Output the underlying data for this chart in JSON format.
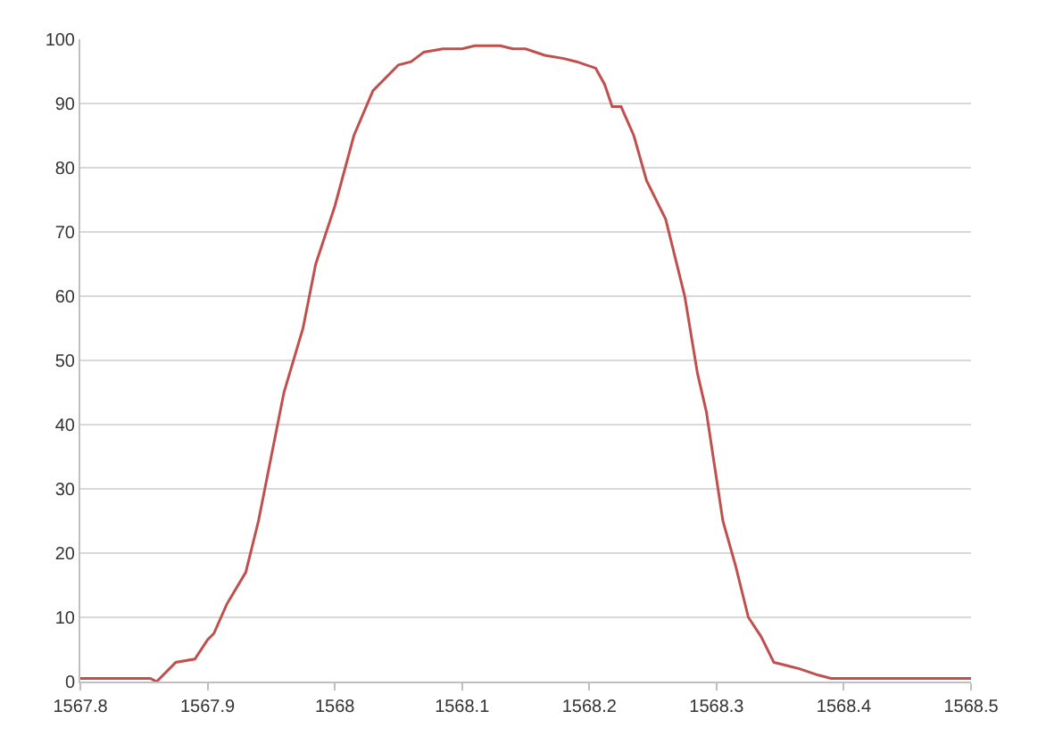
{
  "chart_data": {
    "type": "line",
    "x": [
      1567.8,
      1567.83,
      1567.855,
      1567.86,
      1567.875,
      1567.89,
      1567.9,
      1567.905,
      1567.915,
      1567.93,
      1567.94,
      1567.95,
      1567.96,
      1567.975,
      1567.985,
      1568.0,
      1568.015,
      1568.03,
      1568.05,
      1568.06,
      1568.07,
      1568.085,
      1568.1,
      1568.11,
      1568.13,
      1568.14,
      1568.15,
      1568.165,
      1568.18,
      1568.19,
      1568.205,
      1568.212,
      1568.218,
      1568.225,
      1568.235,
      1568.245,
      1568.26,
      1568.275,
      1568.285,
      1568.292,
      1568.305,
      1568.315,
      1568.325,
      1568.335,
      1568.345,
      1568.355,
      1568.365,
      1568.38,
      1568.39,
      1568.45,
      1568.5
    ],
    "series": [
      {
        "color": "#c0504d",
        "values": [
          0.5,
          0.5,
          0.5,
          0,
          3,
          3.5,
          6.5,
          7.5,
          12,
          17,
          25,
          35,
          45,
          55,
          65,
          74,
          85,
          92,
          96,
          96.5,
          98,
          98.5,
          98.5,
          99,
          99,
          98.5,
          98.5,
          97.5,
          97,
          96.5,
          95.5,
          93,
          89.5,
          89.5,
          85,
          78,
          72,
          60,
          48,
          42,
          25,
          18,
          10,
          7,
          3,
          2.5,
          2,
          1,
          0.5,
          0.5,
          0.5
        ]
      }
    ],
    "xlim": [
      1567.8,
      1568.5
    ],
    "xticks": [
      1567.8,
      1567.9,
      1568,
      1568.1,
      1568.2,
      1568.3,
      1568.4,
      1568.5
    ],
    "ylim": [
      0,
      100
    ],
    "yticks": [
      0,
      10,
      20,
      30,
      40,
      50,
      60,
      70,
      80,
      90,
      100
    ],
    "grid": "y",
    "marker": "none",
    "line_style": "solid"
  }
}
